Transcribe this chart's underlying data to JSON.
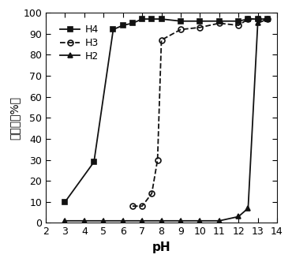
{
  "H4": {
    "x": [
      3.0,
      4.5,
      5.5,
      6.0,
      6.5,
      7.0,
      7.5,
      8.0,
      9.0,
      10.0,
      11.0,
      12.0,
      12.5,
      13.0,
      13.5
    ],
    "y": [
      10,
      29,
      92,
      94,
      95,
      97,
      97,
      97,
      96,
      96,
      96,
      96,
      97,
      97,
      97
    ],
    "linestyle": "solid",
    "marker": "s",
    "color": "#111111",
    "label": "H4",
    "fillstyle": "full"
  },
  "H3": {
    "x": [
      6.5,
      7.0,
      7.5,
      7.8,
      8.0,
      9.0,
      10.0,
      11.0,
      12.0,
      12.5,
      13.0,
      13.5
    ],
    "y": [
      8,
      8,
      14,
      30,
      87,
      92,
      93,
      95,
      94,
      97,
      97,
      97
    ],
    "linestyle": "dashed",
    "marker": "o",
    "color": "#111111",
    "label": "H3",
    "fillstyle": "none"
  },
  "H2": {
    "x": [
      3.0,
      4.0,
      5.0,
      6.0,
      7.0,
      8.0,
      9.0,
      10.0,
      11.0,
      12.0,
      12.5,
      13.0,
      13.5
    ],
    "y": [
      1,
      1,
      1,
      1,
      1,
      1,
      1,
      1,
      1,
      3,
      7,
      95,
      97
    ],
    "linestyle": "solid",
    "marker": "^",
    "color": "#111111",
    "label": "H2",
    "fillstyle": "full"
  },
  "xlim": [
    2,
    14
  ],
  "ylim": [
    0,
    100
  ],
  "xticks": [
    2,
    3,
    4,
    5,
    6,
    7,
    8,
    9,
    10,
    11,
    12,
    13,
    14
  ],
  "yticks": [
    0,
    10,
    20,
    30,
    40,
    50,
    60,
    70,
    80,
    90,
    100
  ],
  "xlabel": "pH",
  "ylabel": "透过率（%）",
  "background_color": "#ffffff",
  "legend_order": [
    "H4",
    "H3",
    "H2"
  ]
}
